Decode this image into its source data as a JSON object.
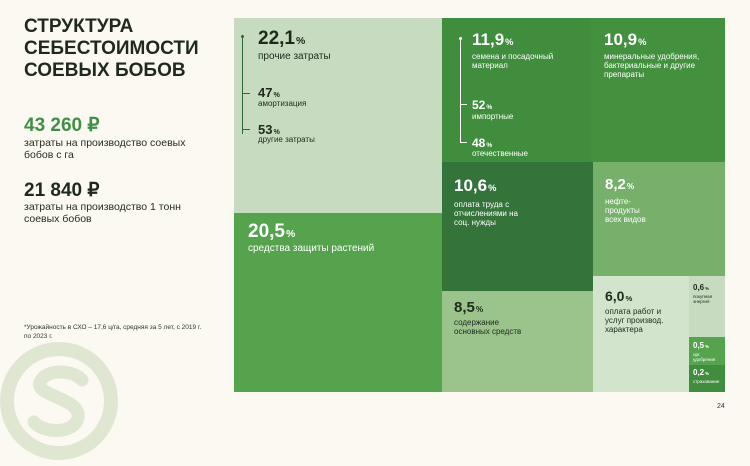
{
  "title": "СТРУКТУРА СЕБЕСТОИМОСТИ СОЕВЫХ БОБОВ",
  "stats": [
    {
      "value": "43 260 ₽",
      "label": "затраты на производство соевых бобов с га"
    },
    {
      "value": "21 840 ₽",
      "label": "затраты на производство 1 тонн соевых бобов"
    }
  ],
  "footnote": "*Урожайность в СХО – 17,6 ц/га, средняя за 5 лет, с 2019 г. по 2023 г.",
  "page_number": "24",
  "colors": {
    "light": "#c6dbbf",
    "mid": "#55a34d",
    "dark": "#3f8d3d",
    "darker": "#34733a",
    "pale": "#9bc48d",
    "bg": "#fbf9f1"
  },
  "chart_data": {
    "type": "treemap",
    "unit": "%",
    "items": [
      {
        "value": "22,1",
        "label": "прочие затраты",
        "sub": [
          {
            "value": "47",
            "label": "амортизация"
          },
          {
            "value": "53",
            "label": "другие затраты"
          }
        ]
      },
      {
        "value": "11,9",
        "label": "семена и посадочный материал",
        "sub": [
          {
            "value": "52",
            "label": "импортные"
          },
          {
            "value": "48",
            "label": "отечественные"
          }
        ]
      },
      {
        "value": "10,9",
        "label": "минеральные удобрения, бактериальные и другие препараты"
      },
      {
        "value": "10,6",
        "label": "оплата труда с отчислениями на соц. нужды"
      },
      {
        "value": "8,2",
        "label": "нефте-продукты всех видов"
      },
      {
        "value": "20,5",
        "label": "средства защиты растений"
      },
      {
        "value": "8,5",
        "label": "содержание основных средств"
      },
      {
        "value": "6,0",
        "label": "оплата работ и услуг производ. характера"
      },
      {
        "value": "0,6",
        "label": "покупная энергия"
      },
      {
        "value": "0,5",
        "label": "орг. удобрения"
      },
      {
        "value": "0,2",
        "label": "страхование"
      }
    ]
  }
}
